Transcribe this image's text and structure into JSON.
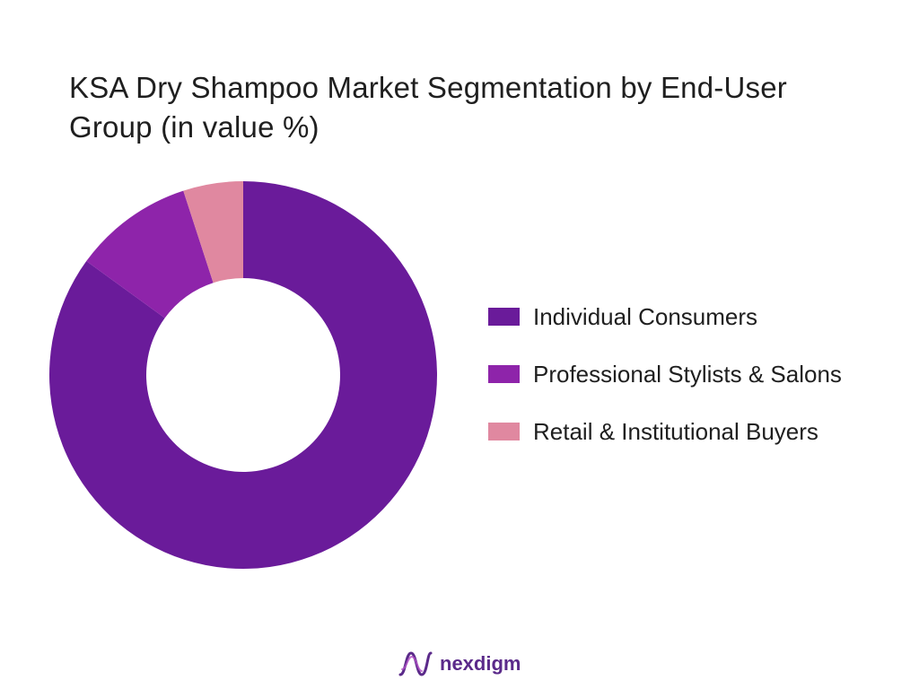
{
  "chart_data": {
    "type": "pie",
    "title": "KSA Dry Shampoo Market Segmentation by End-User Group (in value %)",
    "donut": true,
    "legend_position": "right",
    "categories": [
      "Individual Consumers",
      "Professional Stylists & Salons",
      "Retail & Institutional Buyers"
    ],
    "values": [
      85,
      10,
      5
    ],
    "colors": [
      "#6a1b9a",
      "#8e24aa",
      "#e088a0"
    ]
  },
  "logo": {
    "text": "nexdigm",
    "color": "#5b2a8a"
  }
}
